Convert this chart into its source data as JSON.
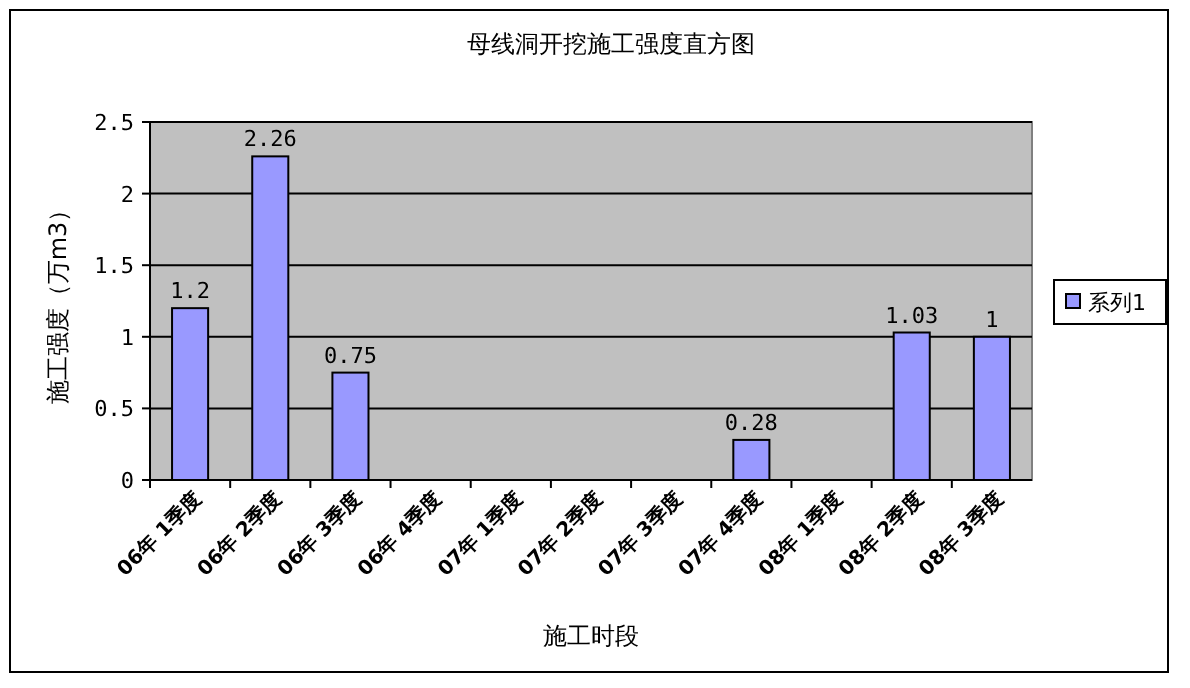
{
  "chart_data": {
    "type": "bar",
    "title": "母线洞开挖施工强度直方图",
    "xlabel": "施工时段",
    "ylabel": "施工强度（万m3）",
    "categories": [
      "06年 1季度",
      "06年 2季度",
      "06年 3季度",
      "06年 4季度",
      "07年 1季度",
      "07年 2季度",
      "07年 3季度",
      "07年 4季度",
      "08年 1季度",
      "08年 2季度",
      "08年 3季度"
    ],
    "series": [
      {
        "name": "系列1",
        "color": "#9999ff",
        "values": [
          1.2,
          2.26,
          0.75,
          null,
          null,
          null,
          null,
          0.28,
          null,
          1.03,
          1
        ]
      }
    ],
    "ylim": [
      0,
      2.5
    ],
    "yticks": [
      0,
      0.5,
      1,
      1.5,
      2,
      2.5
    ],
    "grid": "y",
    "legend": "right",
    "data_labels": true
  }
}
